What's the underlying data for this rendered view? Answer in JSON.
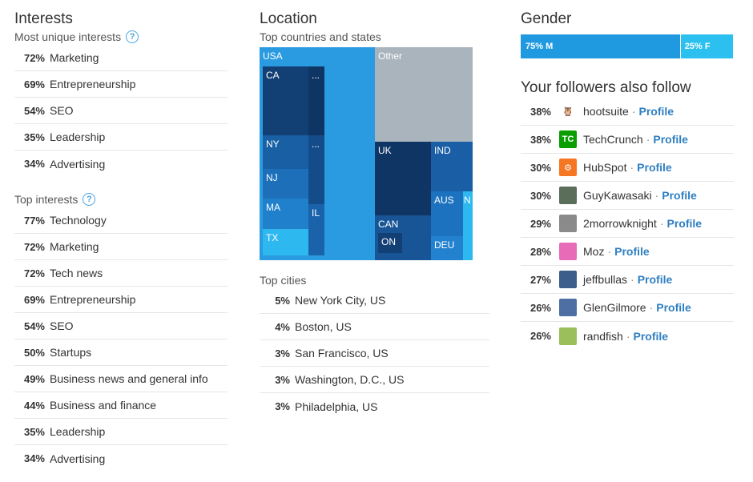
{
  "interests": {
    "title": "Interests",
    "unique_label": "Most unique interests",
    "unique": [
      {
        "pct": "72%",
        "label": "Marketing"
      },
      {
        "pct": "69%",
        "label": "Entrepreneurship"
      },
      {
        "pct": "54%",
        "label": "SEO"
      },
      {
        "pct": "35%",
        "label": "Leadership"
      },
      {
        "pct": "34%",
        "label": "Advertising"
      }
    ],
    "top_label": "Top interests",
    "top": [
      {
        "pct": "77%",
        "label": "Technology"
      },
      {
        "pct": "72%",
        "label": "Marketing"
      },
      {
        "pct": "72%",
        "label": "Tech news"
      },
      {
        "pct": "69%",
        "label": "Entrepreneurship"
      },
      {
        "pct": "54%",
        "label": "SEO"
      },
      {
        "pct": "50%",
        "label": "Startups"
      },
      {
        "pct": "49%",
        "label": "Business news and general info"
      },
      {
        "pct": "44%",
        "label": "Business and finance"
      },
      {
        "pct": "35%",
        "label": "Leadership"
      },
      {
        "pct": "34%",
        "label": "Advertising"
      }
    ],
    "help_glyph": "?"
  },
  "location": {
    "title": "Location",
    "countries_label": "Top countries and states",
    "treemap": {
      "usa": "USA",
      "ca": "CA",
      "ny": "NY",
      "nj": "NJ",
      "ma": "MA",
      "tx": "TX",
      "dots1": "...",
      "dots2": "...",
      "il": "IL",
      "other": "Other",
      "uk": "UK",
      "ind": "IND",
      "can": "CAN",
      "on": "ON",
      "aus": "AUS",
      "n": "N",
      "deu": "DEU"
    },
    "cities_label": "Top cities",
    "cities": [
      {
        "pct": "5%",
        "label": "New York City, US"
      },
      {
        "pct": "4%",
        "label": "Boston, US"
      },
      {
        "pct": "3%",
        "label": "San Francisco, US"
      },
      {
        "pct": "3%",
        "label": "Washington, D.C., US"
      },
      {
        "pct": "3%",
        "label": "Philadelphia, US"
      }
    ]
  },
  "gender": {
    "title": "Gender",
    "male_label": "75% M",
    "female_label": "25% F",
    "male_fraction": 0.75
  },
  "follows": {
    "title": "Your followers also follow",
    "profile_label": "Profile",
    "dot": "·",
    "items": [
      {
        "pct": "38%",
        "name": "hootsuite",
        "avatar_color": "#ffffff",
        "glyph": "🦉"
      },
      {
        "pct": "38%",
        "name": "TechCrunch",
        "avatar_color": "#0a9e01",
        "glyph": "TC"
      },
      {
        "pct": "30%",
        "name": "HubSpot",
        "avatar_color": "#f57722",
        "glyph": "⚙"
      },
      {
        "pct": "30%",
        "name": "GuyKawasaki",
        "avatar_color": "#5a6e5a",
        "glyph": ""
      },
      {
        "pct": "29%",
        "name": "2morrowknight",
        "avatar_color": "#8a8a8a",
        "glyph": ""
      },
      {
        "pct": "28%",
        "name": "Moz",
        "avatar_color": "#e86bb8",
        "glyph": ""
      },
      {
        "pct": "27%",
        "name": "jeffbullas",
        "avatar_color": "#3b5f8a",
        "glyph": ""
      },
      {
        "pct": "26%",
        "name": "GlenGilmore",
        "avatar_color": "#4d6fa3",
        "glyph": ""
      },
      {
        "pct": "26%",
        "name": "randfish",
        "avatar_color": "#9bbf5a",
        "glyph": ""
      }
    ]
  }
}
